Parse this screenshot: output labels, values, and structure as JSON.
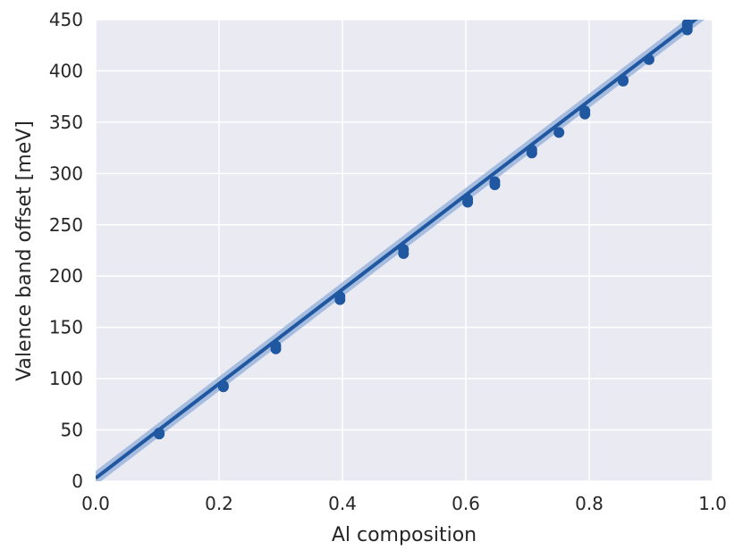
{
  "chart_data": {
    "type": "scatter",
    "xlabel": "Al composition",
    "ylabel": "Valence band offset [meV]",
    "xlim": [
      0.0,
      1.0
    ],
    "ylim": [
      0,
      450
    ],
    "xticks": [
      "0.0",
      "0.2",
      "0.4",
      "0.6",
      "0.8",
      "1.0"
    ],
    "yticks": [
      "0",
      "50",
      "100",
      "150",
      "200",
      "250",
      "300",
      "350",
      "400",
      "450"
    ],
    "grid": true,
    "legend": "none",
    "points": [
      [
        0.103,
        46
      ],
      [
        0.103,
        47
      ],
      [
        0.207,
        92
      ],
      [
        0.207,
        93
      ],
      [
        0.292,
        129
      ],
      [
        0.292,
        132
      ],
      [
        0.396,
        177
      ],
      [
        0.396,
        180
      ],
      [
        0.499,
        222
      ],
      [
        0.499,
        226
      ],
      [
        0.603,
        272
      ],
      [
        0.603,
        275
      ],
      [
        0.647,
        289
      ],
      [
        0.647,
        292
      ],
      [
        0.707,
        320
      ],
      [
        0.707,
        323
      ],
      [
        0.751,
        340
      ],
      [
        0.793,
        358
      ],
      [
        0.793,
        361
      ],
      [
        0.855,
        390
      ],
      [
        0.855,
        391
      ],
      [
        0.897,
        411
      ],
      [
        0.959,
        440
      ],
      [
        0.959,
        444
      ],
      [
        0.959,
        446
      ]
    ],
    "fit_line": {
      "x": [
        0.0,
        1.0
      ],
      "y": [
        3,
        463
      ],
      "band": 7
    },
    "colors": {
      "points": "#1f57a0",
      "line": "#1f57a0",
      "band": "#9ab5dd",
      "plot_bg": "#eaeaf2",
      "grid": "#ffffff"
    }
  }
}
